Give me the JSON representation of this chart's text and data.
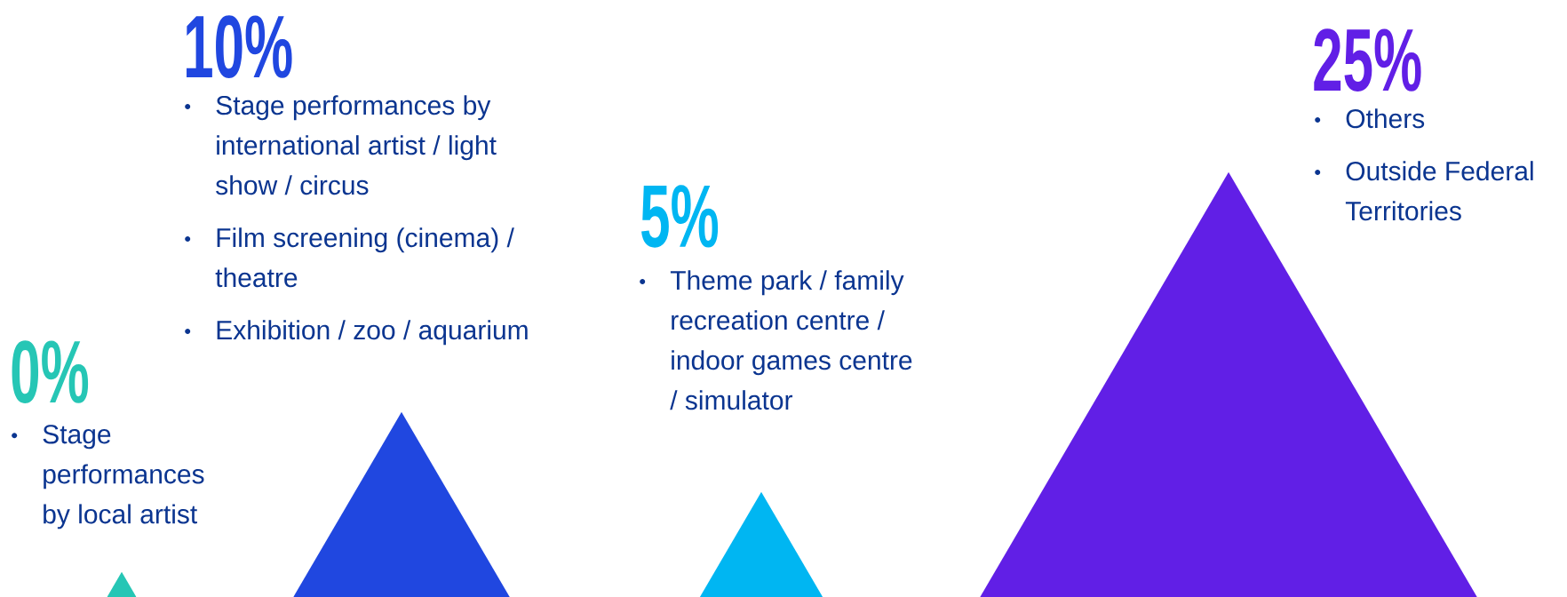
{
  "chart_data": {
    "type": "other",
    "categories": [
      "Stage performances by local artist",
      "Stage performances by international artist / light show / circus",
      "Theme park / family recreation centre / indoor games centre / simulator",
      "Others"
    ],
    "values": [
      0,
      10,
      5,
      25
    ],
    "value_labels": [
      "0%",
      "10%",
      "5%",
      "25%"
    ],
    "colors": [
      "#26c6b5",
      "#2047e0",
      "#00b6f2",
      "#611fe6"
    ],
    "annotations": [
      {
        "text": "Film screening (cinema) / theatre",
        "x": "Stage performances by international artist / light show / circus"
      },
      {
        "text": "Exhibition / zoo / aquarium",
        "x": "Stage performances by international artist / light show / circus"
      },
      {
        "text": "Outside Federal Territories",
        "x": "Others"
      }
    ]
  }
}
